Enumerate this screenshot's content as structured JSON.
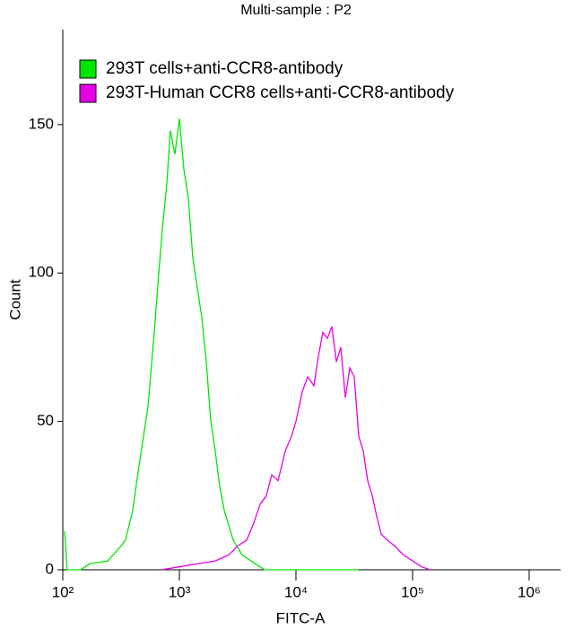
{
  "chart_data": {
    "type": "line",
    "title": "Multi-sample : P2",
    "xlabel": "FITC-A",
    "ylabel": "Count",
    "xscale": "log",
    "xlim": [
      100,
      1860000
    ],
    "ylim": [
      0,
      182
    ],
    "xticks": [
      {
        "value": 100,
        "label": "10²"
      },
      {
        "value": 1000,
        "label": "10³"
      },
      {
        "value": 10000,
        "label": "10⁴"
      },
      {
        "value": 100000,
        "label": "10⁵"
      },
      {
        "value": 1000000,
        "label": "10⁶"
      }
    ],
    "yticks": [
      0,
      50,
      100,
      150
    ],
    "legend": "upper left",
    "series": [
      {
        "name": "293T cells+anti-CCR8-antibody",
        "color": "#00e600",
        "x": [
          103.6,
          109,
          142,
          170,
          243,
          316,
          345,
          398,
          451,
          538,
          609,
          665,
          727,
          780,
          837,
          915,
          1000,
          1093,
          1194,
          1304,
          1425,
          1557,
          1701,
          1858,
          2031,
          2218,
          2424,
          2649,
          2894,
          3455,
          4506,
          5379,
          34500
        ],
        "values": [
          13,
          0,
          0,
          2,
          3,
          8,
          10,
          20,
          35,
          55,
          80,
          100,
          118,
          130,
          148,
          140,
          152,
          135,
          125,
          105,
          95,
          85,
          70,
          50,
          40,
          28,
          20,
          15,
          10,
          5,
          2,
          0,
          0
        ]
      },
      {
        "name": "293T-Human CCR8 cells+anti-CCR8-antibody",
        "color": "#e600e6",
        "x": [
          702,
          1000,
          1425,
          2031,
          2649,
          3162,
          3775,
          4274,
          4924,
          5575,
          6197,
          7016,
          8091,
          9160,
          10000,
          11320,
          12590,
          14250,
          15570,
          17010,
          18580,
          20310,
          22180,
          24240,
          26490,
          28940,
          31620,
          34540,
          37750,
          41230,
          45060,
          49240,
          53800,
          60920,
          70160,
          83680,
          100000,
          119400,
          142600
        ],
        "values": [
          0,
          1,
          2,
          3,
          5,
          8,
          10,
          15,
          22,
          25,
          32,
          30,
          40,
          45,
          50,
          60,
          65,
          62,
          72,
          80,
          78,
          82,
          70,
          75,
          58,
          68,
          65,
          45,
          40,
          30,
          25,
          18,
          12,
          10,
          8,
          5,
          3,
          1,
          0
        ]
      }
    ]
  }
}
